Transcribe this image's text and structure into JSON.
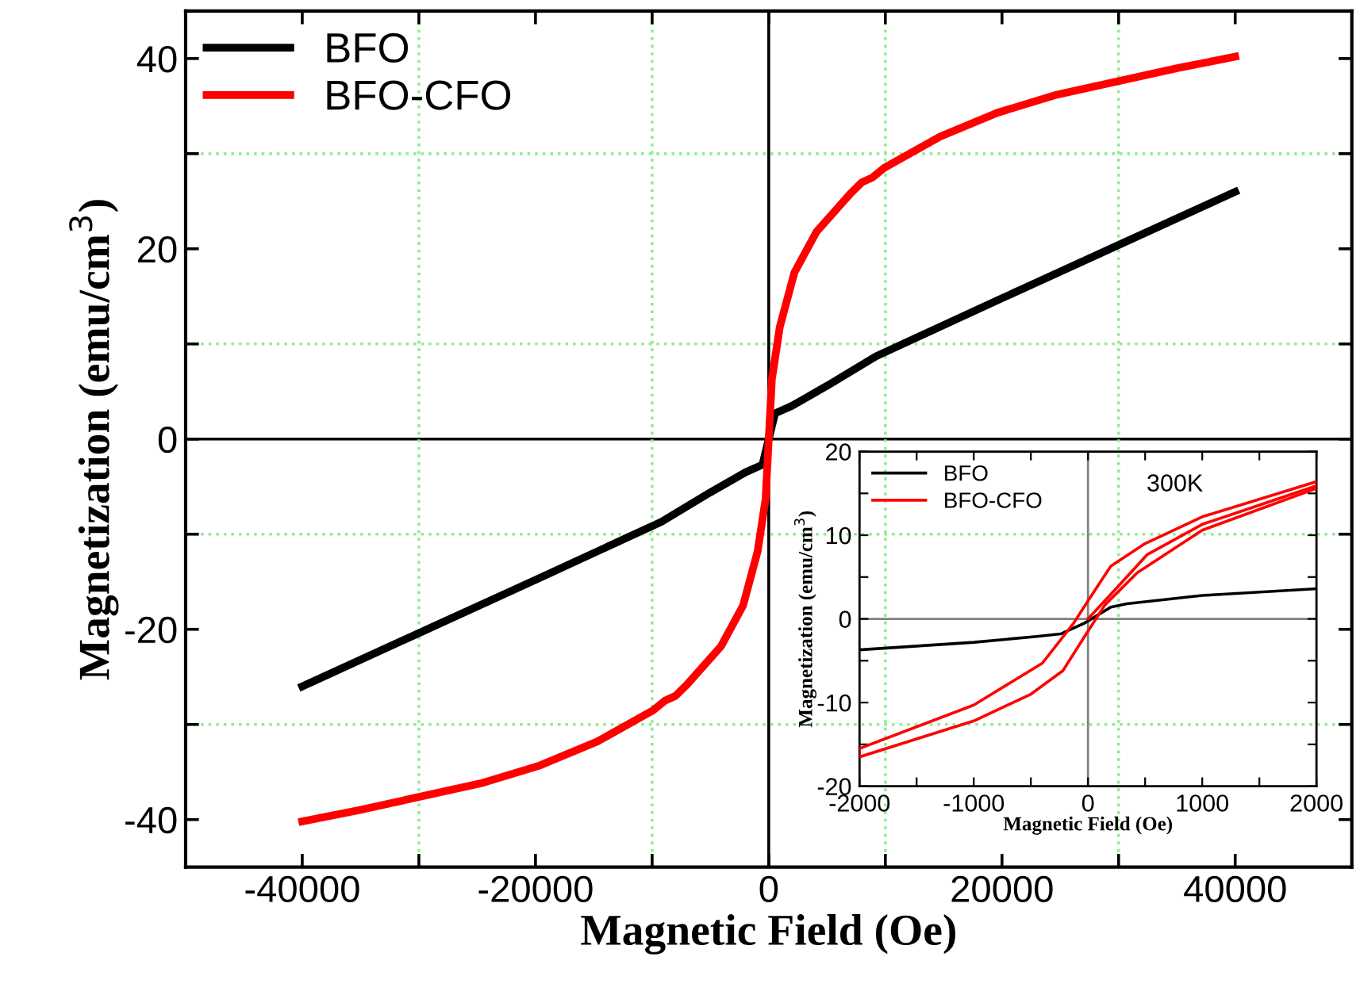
{
  "chart_data": [
    {
      "type": "line",
      "xlabel": "Magnetic Field (Oe)",
      "ylabel": "Magnetization (emu/cm$^{3}$)",
      "xlim": [
        -50000,
        50000
      ],
      "ylim": [
        -45,
        45
      ],
      "xticks": [
        -40000,
        {
          "value": -30000,
          "label": null
        },
        -20000,
        {
          "value": -10000,
          "label": null
        },
        0,
        {
          "value": 10000,
          "label": null
        },
        20000,
        {
          "value": 30000,
          "label": null
        },
        40000
      ],
      "yticks": [
        -40,
        {
          "value": -30,
          "label": null
        },
        -20,
        {
          "value": -10,
          "label": null
        },
        0,
        {
          "value": 10,
          "label": null
        },
        20,
        {
          "value": 30,
          "label": null
        },
        40
      ],
      "legend": "top left",
      "marker": "none",
      "line_style": "solid",
      "series": [
        {
          "name": "BFO",
          "color": "#000000",
          "x": [
            -40000,
            -30000,
            -20000,
            -9200,
            -5000,
            -2000,
            -540,
            0,
            540,
            2000,
            5000,
            9200,
            20000,
            30000,
            40000
          ],
          "values": [
            -26,
            -20.4,
            -14.8,
            -8.7,
            -5.6,
            -3.5,
            -2.7,
            0,
            2.7,
            3.5,
            5.6,
            8.7,
            14.8,
            20.4,
            26
          ]
        },
        {
          "name": "BFO-CFO",
          "color": "#ff0000",
          "x": [
            -40000,
            -35100,
            -24700,
            -19600,
            -14700,
            -9900,
            -8900,
            -8000,
            -7000,
            -4100,
            -2200,
            -950,
            -270,
            0,
            270,
            950,
            2200,
            4100,
            7000,
            8000,
            8900,
            9900,
            14700,
            19600,
            24700,
            35100,
            40000
          ],
          "values": [
            -40.2,
            -39.0,
            -36.2,
            -34.3,
            -31.8,
            -28.5,
            -27.5,
            -27.0,
            -25.8,
            -21.8,
            -17.5,
            -11.8,
            -6.3,
            0,
            6.3,
            11.8,
            17.5,
            21.8,
            25.8,
            27.0,
            27.5,
            28.5,
            31.8,
            34.3,
            36.2,
            39.0,
            40.2
          ]
        }
      ],
      "ref_lines": [
        {
          "axis": "x",
          "value": 0,
          "color": "#000000",
          "line_style": "solid"
        },
        {
          "axis": "y",
          "value": 0,
          "color": "#000000",
          "line_style": "solid"
        },
        {
          "axis": "x",
          "value": -30000,
          "color": "#90ee90",
          "line_style": "dotted"
        },
        {
          "axis": "x",
          "value": -10000,
          "color": "#90ee90",
          "line_style": "dotted"
        },
        {
          "axis": "x",
          "value": 10000,
          "color": "#90ee90",
          "line_style": "dotted"
        },
        {
          "axis": "x",
          "value": 30000,
          "color": "#90ee90",
          "line_style": "dotted"
        },
        {
          "axis": "y",
          "value": -30,
          "color": "#90ee90",
          "line_style": "dotted"
        },
        {
          "axis": "y",
          "value": -10,
          "color": "#90ee90",
          "line_style": "dotted"
        },
        {
          "axis": "y",
          "value": 10,
          "color": "#90ee90",
          "line_style": "dotted"
        },
        {
          "axis": "y",
          "value": 30,
          "color": "#90ee90",
          "line_style": "dotted"
        }
      ]
    },
    {
      "type": "line",
      "xlabel": "Magnetic Field (Oe)",
      "ylabel": "Magnetization (emu/cm$^{3}$)",
      "xlim": [
        -2000,
        2000
      ],
      "ylim": [
        -20,
        20
      ],
      "xticks": [
        -2000,
        {
          "value": -1500,
          "label": null
        },
        -1000,
        {
          "value": -500,
          "label": null
        },
        0,
        {
          "value": 500,
          "label": null
        },
        1000,
        {
          "value": 1500,
          "label": null
        },
        2000
      ],
      "yticks": [
        -20,
        {
          "value": -15,
          "label": null
        },
        -10,
        {
          "value": -5,
          "label": null
        },
        0,
        {
          "value": 5,
          "label": null
        },
        10,
        {
          "value": 15,
          "label": null
        },
        20
      ],
      "legend": "top left",
      "marker": "none",
      "line_style": "solid",
      "annotations": [
        "300K"
      ],
      "series": [
        {
          "name": "BFO",
          "color": "#000000",
          "x": [
            -2000,
            -1000,
            -450,
            -240,
            -30,
            200,
            340,
            1000,
            2000
          ],
          "values": [
            -3.7,
            -2.8,
            -2.1,
            -1.8,
            -0.5,
            1.4,
            1.8,
            2.8,
            3.6
          ]
        },
        {
          "name": "BFO-CFO",
          "color": "#ff0000",
          "x": [
            2000,
            1000,
            500,
            200,
            40,
            -125,
            -400,
            -1000,
            -2000,
            -2000,
            -1000,
            -500,
            -220,
            -30,
            150,
            430,
            1000,
            2000
          ],
          "values": [
            16.4,
            12.2,
            9.0,
            6.3,
            3.0,
            -0.5,
            -5.3,
            -10.3,
            -15.5,
            -16.5,
            -12.2,
            -9.0,
            -6.2,
            -2.1,
            1.7,
            5.5,
            10.6,
            15.6
          ]
        },
        {
          "color": "#ff0000",
          "x": [
            0,
            245,
            520,
            1000,
            2000
          ],
          "values": [
            0,
            3.6,
            7.7,
            11.3,
            15.9
          ]
        }
      ],
      "ref_lines": [
        {
          "axis": "x",
          "value": 0,
          "color": "#808080",
          "line_style": "solid"
        },
        {
          "axis": "y",
          "value": 0,
          "color": "#808080",
          "line_style": "solid"
        }
      ]
    }
  ]
}
